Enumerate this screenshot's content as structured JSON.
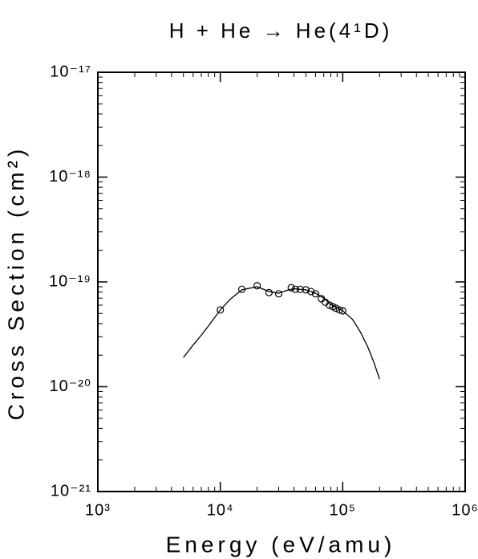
{
  "chart_data": {
    "type": "line",
    "title": "H + He → He(4¹D)",
    "xlabel": "Energy (eV/amu)",
    "ylabel": "Cross Section (cm²)",
    "xscale": "log",
    "yscale": "log",
    "color": "#000000",
    "xlim": [
      1000,
      1000000
    ],
    "ylim": [
      1e-21,
      1e-17
    ],
    "xticks": [
      {
        "value": 1000,
        "label": "10³"
      },
      {
        "value": 10000,
        "label": "10⁴"
      },
      {
        "value": 100000,
        "label": "10⁵"
      },
      {
        "value": 1000000,
        "label": "10⁶"
      }
    ],
    "yticks": [
      {
        "value": 1e-21,
        "label": "10⁻²¹"
      },
      {
        "value": 1e-20,
        "label": "10⁻²⁰"
      },
      {
        "value": 1e-19,
        "label": "10⁻¹⁹"
      },
      {
        "value": 1e-18,
        "label": "10⁻¹⁸"
      },
      {
        "value": 1e-17,
        "label": "10⁻¹⁷"
      }
    ],
    "series": [
      {
        "type": "line",
        "x": [
          5000,
          6000,
          7000,
          8000,
          10000,
          12000,
          15000,
          20000,
          25000,
          30000,
          35000,
          40000,
          50000,
          60000,
          70000,
          80000,
          100000,
          120000,
          140000,
          160000,
          180000,
          200000
        ],
        "values": [
          1.9e-20,
          2.5e-20,
          3.1e-20,
          3.8e-20,
          5.4e-20,
          6.8e-20,
          8.4e-20,
          9e-20,
          8.1e-20,
          7.8e-20,
          8.3e-20,
          8.6e-20,
          8.4e-20,
          7.8e-20,
          7e-20,
          6.1e-20,
          5.3e-20,
          4.4e-20,
          3.3e-20,
          2.4e-20,
          1.7e-20,
          1.18e-20
        ]
      },
      {
        "type": "scatter",
        "x": [
          10000,
          15000,
          20000,
          25000,
          30000,
          38000,
          41000,
          45000,
          50000,
          55000,
          60000,
          67000,
          72000,
          78000,
          83000,
          88000,
          94000,
          100000
        ],
        "values": [
          5.4e-20,
          8.5e-20,
          9.2e-20,
          7.9e-20,
          7.7e-20,
          8.8e-20,
          8.5e-20,
          8.5e-20,
          8.4e-20,
          8.1e-20,
          7.7e-20,
          6.9e-20,
          6.4e-20,
          6e-20,
          5.8e-20,
          5.6e-20,
          5.4e-20,
          5.3e-20
        ]
      }
    ]
  }
}
